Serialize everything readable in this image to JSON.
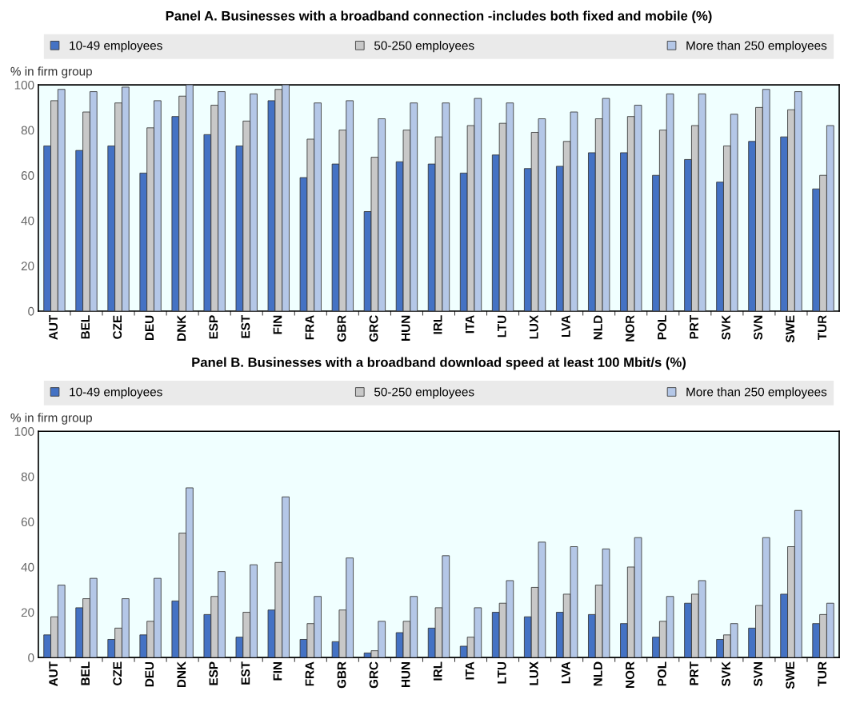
{
  "chart_data": [
    {
      "type": "bar",
      "title": "Panel A. Businesses with a broadband connection -includes both fixed and mobile (%)",
      "ylabel": "% in firm group",
      "categories": [
        "AUT",
        "BEL",
        "CZE",
        "DEU",
        "DNK",
        "ESP",
        "EST",
        "FIN",
        "FRA",
        "GBR",
        "GRC",
        "HUN",
        "IRL",
        "ITA",
        "LTU",
        "LUX",
        "LVA",
        "NLD",
        "NOR",
        "POL",
        "PRT",
        "SVK",
        "SVN",
        "SWE",
        "TUR"
      ],
      "series": [
        {
          "name": "10-49 employees",
          "color": "#4472c4",
          "values": [
            73,
            71,
            73,
            61,
            86,
            78,
            73,
            93,
            59,
            65,
            44,
            66,
            65,
            61,
            69,
            63,
            64,
            70,
            70,
            60,
            67,
            57,
            75,
            77,
            54
          ]
        },
        {
          "name": "50-250 employees",
          "color": "#c8c8c8",
          "values": [
            93,
            88,
            92,
            81,
            95,
            91,
            84,
            98,
            76,
            80,
            68,
            80,
            77,
            82,
            83,
            79,
            75,
            85,
            86,
            80,
            82,
            73,
            90,
            89,
            60
          ]
        },
        {
          "name": "More than 250 employees",
          "color": "#b4c7e7",
          "values": [
            98,
            97,
            99,
            93,
            100,
            97,
            96,
            100,
            92,
            93,
            85,
            92,
            92,
            94,
            92,
            85,
            88,
            94,
            91,
            96,
            96,
            87,
            98,
            97,
            82
          ]
        }
      ],
      "ylim": [
        0,
        100
      ],
      "yticks": [
        0,
        20,
        40,
        60,
        80,
        100
      ],
      "legend": "top",
      "grid": false
    },
    {
      "type": "bar",
      "title": "Panel B. Businesses with a broadband download speed at least 100 Mbit/s (%)",
      "ylabel": "% in firm group",
      "categories": [
        "AUT",
        "BEL",
        "CZE",
        "DEU",
        "DNK",
        "ESP",
        "EST",
        "FIN",
        "FRA",
        "GBR",
        "GRC",
        "HUN",
        "IRL",
        "ITA",
        "LTU",
        "LUX",
        "LVA",
        "NLD",
        "NOR",
        "POL",
        "PRT",
        "SVK",
        "SVN",
        "SWE",
        "TUR"
      ],
      "series": [
        {
          "name": "10-49 employees",
          "color": "#4472c4",
          "values": [
            10,
            22,
            8,
            10,
            25,
            19,
            9,
            21,
            8,
            7,
            2,
            11,
            13,
            5,
            20,
            18,
            20,
            19,
            15,
            9,
            24,
            8,
            13,
            28,
            15
          ]
        },
        {
          "name": "50-250 employees",
          "color": "#c8c8c8",
          "values": [
            18,
            26,
            13,
            16,
            55,
            27,
            20,
            42,
            15,
            21,
            3,
            16,
            22,
            9,
            24,
            31,
            28,
            32,
            40,
            16,
            28,
            10,
            23,
            49,
            19
          ]
        },
        {
          "name": "More than 250 employees",
          "color": "#b4c7e7",
          "values": [
            32,
            35,
            26,
            35,
            75,
            38,
            41,
            71,
            27,
            44,
            16,
            27,
            45,
            22,
            34,
            51,
            49,
            48,
            53,
            27,
            34,
            15,
            53,
            65,
            24
          ]
        }
      ],
      "ylim": [
        0,
        100
      ],
      "yticks": [
        0,
        20,
        40,
        60,
        80,
        100
      ],
      "legend": "top",
      "grid": false
    }
  ]
}
